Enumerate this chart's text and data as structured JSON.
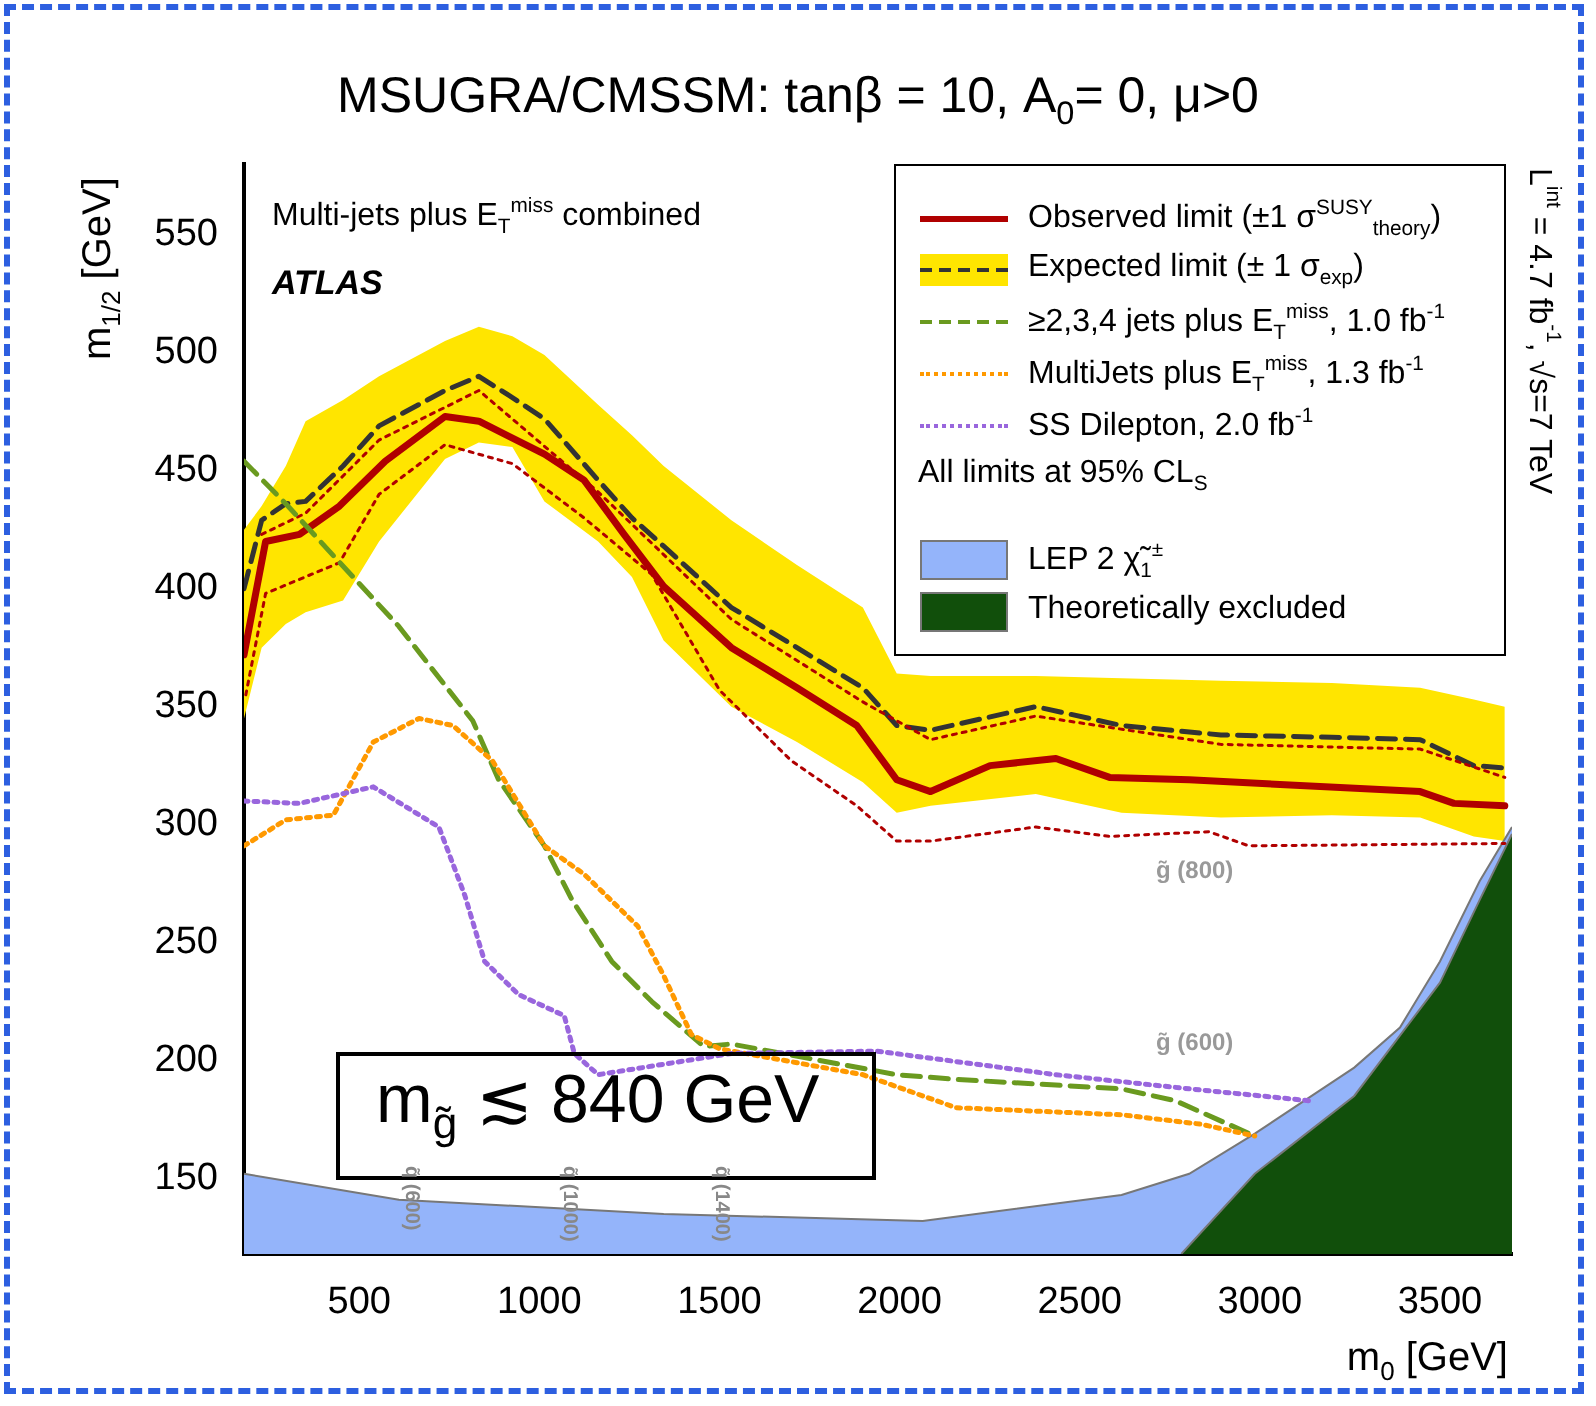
{
  "chart_data": {
    "type": "line",
    "title": "MSUGRA/CMSSM: tanβ = 10, A$_{0}$= 0, μ>0",
    "xlabel": "m$_{0}$ [GeV]",
    "ylabel": "m$_{1/2}$ [GeV]",
    "xlim": [
      180,
      3700
    ],
    "ylim": [
      118,
      580
    ],
    "xticks": [
      500,
      1000,
      1500,
      2000,
      2500,
      3000,
      3500
    ],
    "yticks": [
      150,
      200,
      250,
      300,
      350,
      400,
      450,
      500,
      550
    ],
    "grid": false,
    "legend": "top right",
    "marker": "none",
    "series": [
      {
        "name": "Observed limit (±1 σ$^{SUSY}$$_{theory}$)",
        "color": "#b00000",
        "line_style": "solid",
        "x": [
          180,
          240,
          334,
          445,
          572,
          738,
          832,
          1014,
          1124,
          1235,
          1345,
          1533,
          1715,
          1881,
          1992,
          2086,
          2251,
          2434,
          2583,
          2804,
          3445,
          3539,
          3680
        ],
        "values": [
          372,
          420,
          423,
          435,
          454,
          473,
          471,
          457,
          446,
          423,
          401,
          375,
          358,
          342,
          319,
          314,
          325,
          328,
          320,
          319,
          314,
          309,
          308
        ]
      },
      {
        "name": "Expected limit (± 1 σ$_{exp}$)",
        "color": "#333333",
        "line_style": "dashed",
        "x": [
          180,
          229,
          296,
          351,
          455,
          555,
          738,
          832,
          925,
          1014,
          1163,
          1257,
          1345,
          1533,
          1715,
          1898,
          1992,
          2086,
          2378,
          2616,
          2892,
          3200,
          3445,
          3594,
          3680
        ],
        "values": [
          400,
          429,
          436,
          437,
          452,
          469,
          484,
          490,
          481,
          472,
          446,
          430,
          418,
          392,
          375,
          358,
          342,
          340,
          350,
          342,
          338,
          337,
          336,
          325,
          324
        ],
        "lower": [
          345,
          375,
          385,
          390,
          395,
          420,
          455,
          462,
          460,
          437,
          420,
          405,
          378,
          350,
          335,
          318,
          305,
          308,
          313,
          305,
          303,
          304,
          303,
          295,
          293
        ],
        "upper": [
          425,
          435,
          452,
          471,
          480,
          490,
          505,
          511,
          507,
          499,
          478,
          465,
          452,
          429,
          410,
          392,
          364,
          363,
          363,
          362,
          361,
          360,
          358,
          353,
          350
        ]
      },
      {
        "color": "#b00000",
        "line_style": "dotted",
        "x": [
          229,
          351,
          555,
          832,
          1163,
          1533,
          1898,
          2086,
          2378,
          2892,
          3445,
          3680
        ],
        "values": [
          423,
          432,
          463,
          484,
          441,
          387,
          352,
          336,
          346,
          334,
          332,
          320
        ]
      },
      {
        "color": "#b00000",
        "line_style": "dotted",
        "x": [
          185,
          240,
          445,
          555,
          738,
          925,
          1124,
          1312,
          1500,
          1700,
          1881,
          1992,
          2086,
          2378,
          2583,
          2859,
          2969,
          3680
        ],
        "values": [
          355,
          398,
          411,
          440,
          461,
          453,
          430,
          406,
          357,
          327,
          308,
          293,
          293,
          299,
          295,
          297,
          291,
          292
        ]
      },
      {
        "name": "≥2,3,4 jets plus E$_{T}$$^{miss}$, 1.0 fb$^{-1}$",
        "color": "#6a9a1f",
        "line_style": "dashed",
        "x": [
          180,
          296,
          428,
          610,
          815,
          887,
          1014,
          1091,
          1201,
          1312,
          1456,
          1533,
          1992,
          2157,
          2616,
          2765,
          2986
        ],
        "values": [
          454,
          436,
          414,
          384,
          344,
          319,
          291,
          268,
          242,
          225,
          206,
          207,
          194,
          192,
          188,
          183,
          168
        ]
      },
      {
        "name": "MultiJets plus E$_{T}$$^{miss}$, 1.3 fb$^{-1}$",
        "color": "#ff9900",
        "line_style": "dotted",
        "x": [
          180,
          296,
          428,
          539,
          666,
          760,
          870,
          1014,
          1124,
          1273,
          1345,
          1422,
          1500,
          1898,
          2157,
          2616,
          2837,
          2986
        ],
        "values": [
          291,
          302,
          304,
          335,
          345,
          342,
          327,
          291,
          279,
          257,
          236,
          211,
          205,
          194,
          180,
          177,
          173,
          168
        ]
      },
      {
        "name": "SS Dilepton, 2.0 fb$^{-1}$",
        "color": "#9966dd",
        "line_style": "dotted",
        "x": [
          180,
          334,
          539,
          721,
          793,
          848,
          942,
          1069,
          1097,
          1163,
          1533,
          1936,
          2434,
          2804,
          3135
        ],
        "values": [
          310,
          309,
          316,
          299,
          270,
          242,
          228,
          219,
          203,
          194,
          203,
          204,
          194,
          188,
          183
        ]
      },
      {
        "type": "area",
        "name": "LEP 2 χ̃$_{1}$$^{±}$",
        "color": "#94b4fa",
        "x": [
          180,
          610,
          1345,
          2064,
          2616,
          2804,
          2986,
          3262,
          3389,
          3500,
          3610,
          3700
        ],
        "values": [
          152,
          141,
          135,
          132,
          143,
          152,
          169,
          197,
          214,
          242,
          276,
          299
        ]
      },
      {
        "type": "area",
        "name": "Theoretically excluded",
        "color": "#114f0b",
        "x": [
          2782,
          2986,
          3262,
          3500,
          3610,
          3700
        ],
        "values": [
          118,
          152,
          185,
          233,
          268,
          296
        ]
      }
    ],
    "annotations": [
      "Multi-jets plus E$_{T}$$^{miss}$ combined",
      "ATLAS",
      "All limits at 95% CL$_{S}$",
      "L$^{int}$ = 4.7 fb$^{-1}$, √s=7 TeV",
      "m$_{g̃}$ ≲ 840 GeV",
      "g̃ (800)",
      "g̃ (600)",
      "q̃ (600)",
      "q̃ (1000)",
      "q̃ (1400)"
    ]
  }
}
